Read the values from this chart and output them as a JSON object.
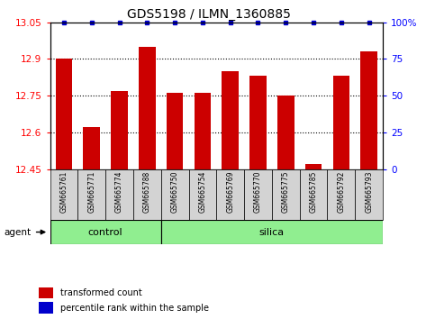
{
  "title": "GDS5198 / ILMN_1360885",
  "samples": [
    "GSM665761",
    "GSM665771",
    "GSM665774",
    "GSM665788",
    "GSM665750",
    "GSM665754",
    "GSM665769",
    "GSM665770",
    "GSM665775",
    "GSM665785",
    "GSM665792",
    "GSM665793"
  ],
  "bar_values": [
    12.9,
    12.62,
    12.77,
    12.95,
    12.76,
    12.76,
    12.85,
    12.83,
    12.75,
    12.47,
    12.83,
    12.93
  ],
  "percentile_values": [
    100,
    100,
    100,
    100,
    100,
    100,
    100,
    100,
    100,
    100,
    100,
    100
  ],
  "ymin": 12.45,
  "ymax": 13.05,
  "yticks": [
    12.45,
    12.6,
    12.75,
    12.9,
    13.05
  ],
  "ytick_labels": [
    "12.45",
    "12.6",
    "12.75",
    "12.9",
    "13.05"
  ],
  "right_yticks": [
    0,
    25,
    50,
    75,
    100
  ],
  "right_ytick_labels": [
    "0",
    "25",
    "50",
    "75",
    "100%"
  ],
  "hlines": [
    12.9,
    12.75,
    12.6
  ],
  "bar_color": "#cc0000",
  "percentile_color": "#0000cc",
  "control_samples": 4,
  "silica_samples": 8,
  "control_label": "control",
  "silica_label": "silica",
  "agent_label": "agent",
  "legend_bar_label": "transformed count",
  "legend_pct_label": "percentile rank within the sample",
  "group_bg_color": "#90ee90",
  "sample_bg_color": "#d3d3d3",
  "title_fontsize": 10,
  "tick_fontsize": 7.5,
  "sample_fontsize": 5.5,
  "group_fontsize": 8,
  "legend_fontsize": 7,
  "agent_fontsize": 7.5
}
